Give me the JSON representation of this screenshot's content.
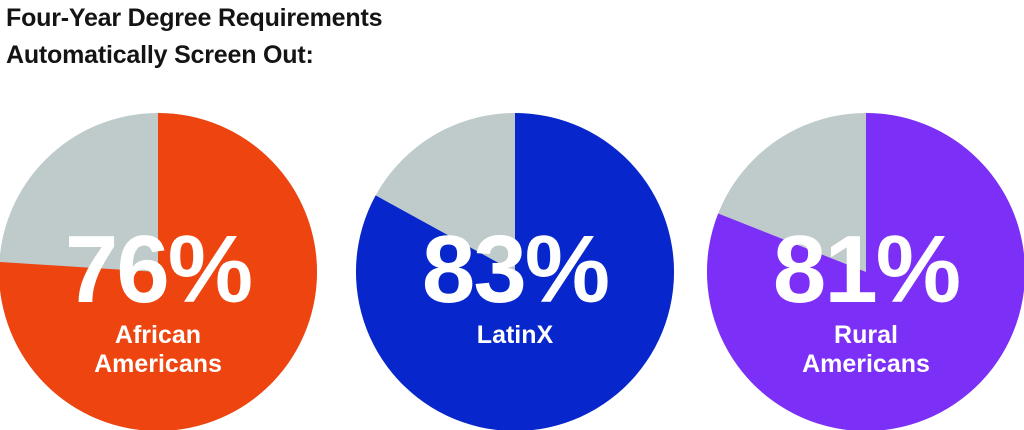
{
  "title": {
    "line1": "Four-Year Degree Requirements",
    "line2": "Automatically Screen Out:"
  },
  "colors": {
    "remainder": "#bfcaca",
    "label_text": "#ffffff"
  },
  "chart_data": {
    "type": "pie",
    "title": "Four-Year Degree Requirements Automatically Screen Out:",
    "charts": [
      {
        "percent": 76,
        "display": "76%",
        "label_lines": [
          "African",
          "Americans"
        ],
        "color": "#ee4510"
      },
      {
        "percent": 83,
        "display": "83%",
        "label_lines": [
          "LatinX"
        ],
        "color": "#0727cc"
      },
      {
        "percent": 81,
        "display": "81%",
        "label_lines": [
          "Rural",
          "Americans"
        ],
        "color": "#7b2ff7"
      }
    ]
  }
}
